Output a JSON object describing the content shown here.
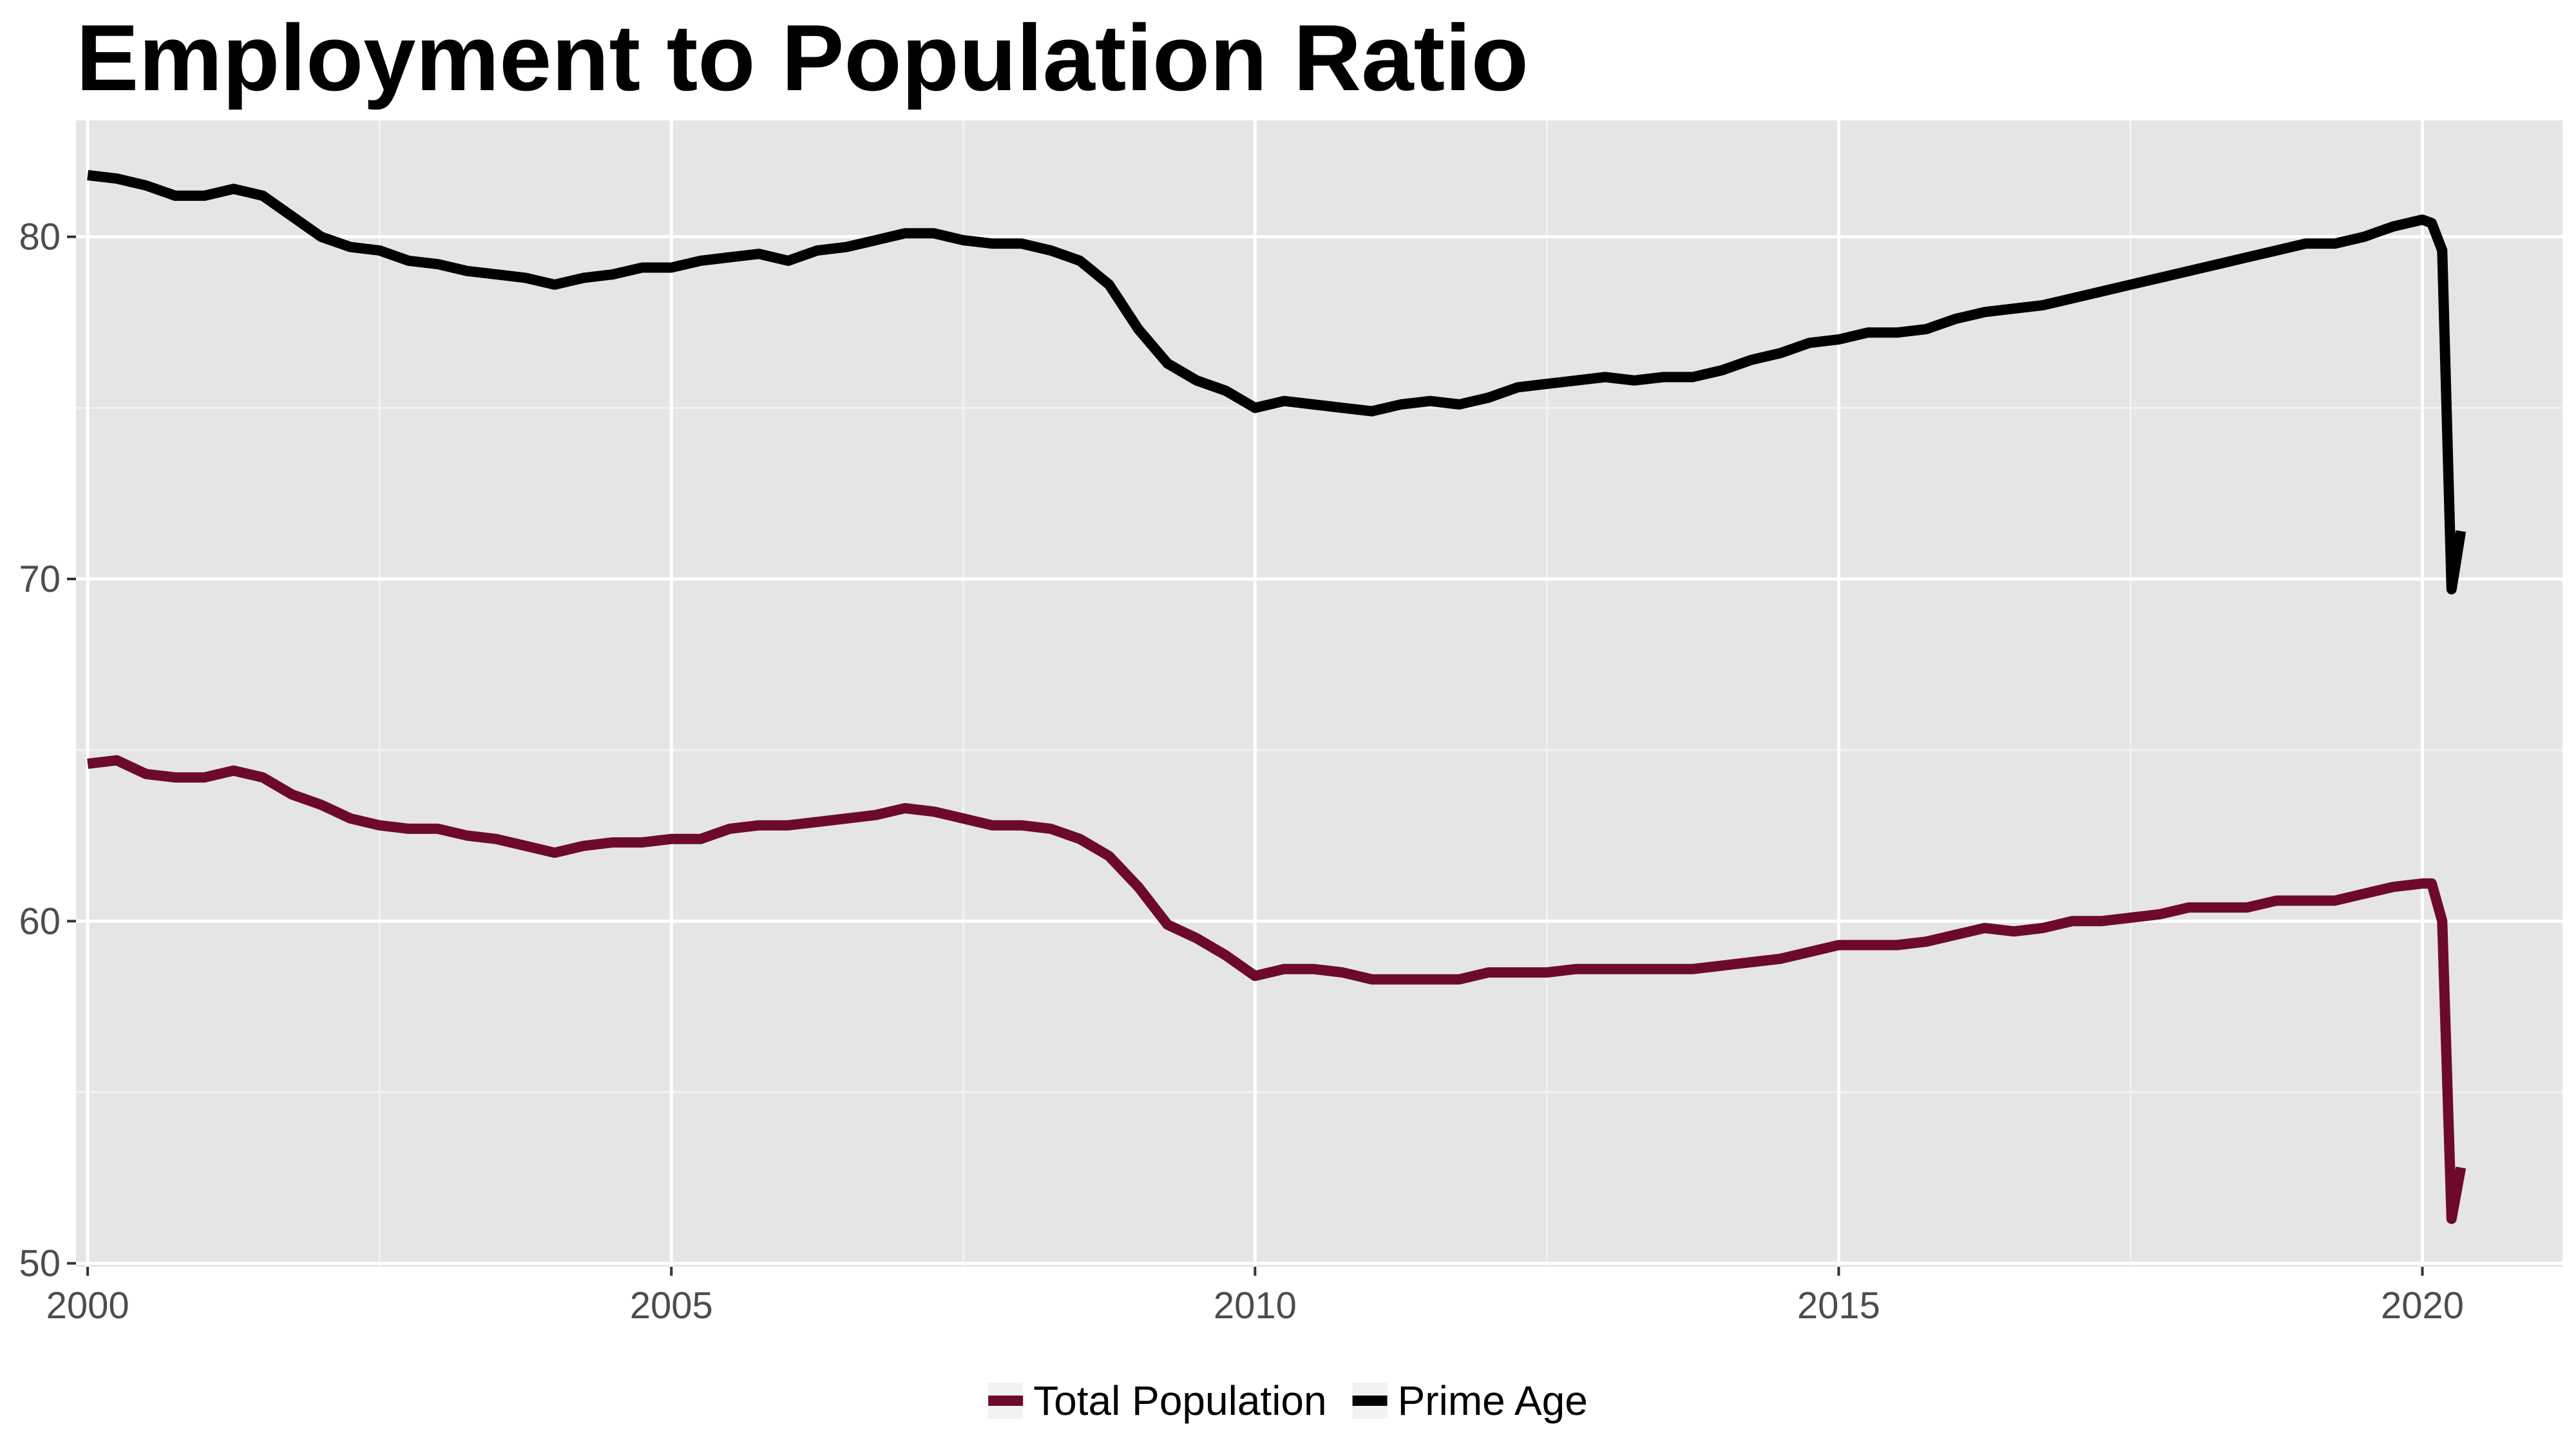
{
  "chart_data": {
    "type": "line",
    "title": "Employment to Population Ratio",
    "xlabel": "",
    "ylabel": "",
    "xlim": [
      1999.9,
      2021.2
    ],
    "ylim": [
      49.9,
      83.4
    ],
    "x_ticks": [
      2000,
      2005,
      2010,
      2015,
      2020
    ],
    "y_ticks": [
      50,
      60,
      70,
      80
    ],
    "grid": true,
    "legend_position": "bottom",
    "series": [
      {
        "name": "Total Population",
        "color": "#6d0a2a",
        "points": [
          [
            2000.0,
            64.6
          ],
          [
            2000.25,
            64.7
          ],
          [
            2000.5,
            64.3
          ],
          [
            2000.75,
            64.2
          ],
          [
            2001.0,
            64.2
          ],
          [
            2001.25,
            64.4
          ],
          [
            2001.5,
            64.2
          ],
          [
            2001.75,
            63.7
          ],
          [
            2002.0,
            63.4
          ],
          [
            2002.25,
            63.0
          ],
          [
            2002.5,
            62.8
          ],
          [
            2002.75,
            62.7
          ],
          [
            2003.0,
            62.7
          ],
          [
            2003.25,
            62.5
          ],
          [
            2003.5,
            62.4
          ],
          [
            2003.75,
            62.2
          ],
          [
            2004.0,
            62.0
          ],
          [
            2004.25,
            62.2
          ],
          [
            2004.5,
            62.3
          ],
          [
            2004.75,
            62.3
          ],
          [
            2005.0,
            62.4
          ],
          [
            2005.25,
            62.4
          ],
          [
            2005.5,
            62.7
          ],
          [
            2005.75,
            62.8
          ],
          [
            2006.0,
            62.8
          ],
          [
            2006.25,
            62.9
          ],
          [
            2006.5,
            63.0
          ],
          [
            2006.75,
            63.1
          ],
          [
            2007.0,
            63.3
          ],
          [
            2007.25,
            63.2
          ],
          [
            2007.5,
            63.0
          ],
          [
            2007.75,
            62.8
          ],
          [
            2008.0,
            62.8
          ],
          [
            2008.25,
            62.7
          ],
          [
            2008.5,
            62.4
          ],
          [
            2008.75,
            61.9
          ],
          [
            2009.0,
            61.0
          ],
          [
            2009.25,
            59.9
          ],
          [
            2009.5,
            59.5
          ],
          [
            2009.75,
            59.0
          ],
          [
            2010.0,
            58.4
          ],
          [
            2010.25,
            58.6
          ],
          [
            2010.5,
            58.6
          ],
          [
            2010.75,
            58.5
          ],
          [
            2011.0,
            58.3
          ],
          [
            2011.25,
            58.3
          ],
          [
            2011.5,
            58.3
          ],
          [
            2011.75,
            58.3
          ],
          [
            2012.0,
            58.5
          ],
          [
            2012.25,
            58.5
          ],
          [
            2012.5,
            58.5
          ],
          [
            2012.75,
            58.6
          ],
          [
            2013.0,
            58.6
          ],
          [
            2013.25,
            58.6
          ],
          [
            2013.5,
            58.6
          ],
          [
            2013.75,
            58.6
          ],
          [
            2014.0,
            58.7
          ],
          [
            2014.25,
            58.8
          ],
          [
            2014.5,
            58.9
          ],
          [
            2014.75,
            59.1
          ],
          [
            2015.0,
            59.3
          ],
          [
            2015.25,
            59.3
          ],
          [
            2015.5,
            59.3
          ],
          [
            2015.75,
            59.4
          ],
          [
            2016.0,
            59.6
          ],
          [
            2016.25,
            59.8
          ],
          [
            2016.5,
            59.7
          ],
          [
            2016.75,
            59.8
          ],
          [
            2017.0,
            60.0
          ],
          [
            2017.25,
            60.0
          ],
          [
            2017.5,
            60.1
          ],
          [
            2017.75,
            60.2
          ],
          [
            2018.0,
            60.4
          ],
          [
            2018.25,
            60.4
          ],
          [
            2018.5,
            60.4
          ],
          [
            2018.75,
            60.6
          ],
          [
            2019.0,
            60.6
          ],
          [
            2019.25,
            60.6
          ],
          [
            2019.5,
            60.8
          ],
          [
            2019.75,
            61.0
          ],
          [
            2020.0,
            61.1
          ],
          [
            2020.08,
            61.1
          ],
          [
            2020.17,
            60.0
          ],
          [
            2020.25,
            51.3
          ],
          [
            2020.33,
            52.8
          ]
        ]
      },
      {
        "name": "Prime Age",
        "color": "#000000",
        "points": [
          [
            2000.0,
            81.8
          ],
          [
            2000.25,
            81.7
          ],
          [
            2000.5,
            81.5
          ],
          [
            2000.75,
            81.2
          ],
          [
            2001.0,
            81.2
          ],
          [
            2001.25,
            81.4
          ],
          [
            2001.5,
            81.2
          ],
          [
            2001.75,
            80.6
          ],
          [
            2002.0,
            80.0
          ],
          [
            2002.25,
            79.7
          ],
          [
            2002.5,
            79.6
          ],
          [
            2002.75,
            79.3
          ],
          [
            2003.0,
            79.2
          ],
          [
            2003.25,
            79.0
          ],
          [
            2003.5,
            78.9
          ],
          [
            2003.75,
            78.8
          ],
          [
            2004.0,
            78.6
          ],
          [
            2004.25,
            78.8
          ],
          [
            2004.5,
            78.9
          ],
          [
            2004.75,
            79.1
          ],
          [
            2005.0,
            79.1
          ],
          [
            2005.25,
            79.3
          ],
          [
            2005.5,
            79.4
          ],
          [
            2005.75,
            79.5
          ],
          [
            2006.0,
            79.3
          ],
          [
            2006.25,
            79.6
          ],
          [
            2006.5,
            79.7
          ],
          [
            2006.75,
            79.9
          ],
          [
            2007.0,
            80.1
          ],
          [
            2007.25,
            80.1
          ],
          [
            2007.5,
            79.9
          ],
          [
            2007.75,
            79.8
          ],
          [
            2008.0,
            79.8
          ],
          [
            2008.25,
            79.6
          ],
          [
            2008.5,
            79.3
          ],
          [
            2008.75,
            78.6
          ],
          [
            2009.0,
            77.3
          ],
          [
            2009.25,
            76.3
          ],
          [
            2009.5,
            75.8
          ],
          [
            2009.75,
            75.5
          ],
          [
            2010.0,
            75.0
          ],
          [
            2010.25,
            75.2
          ],
          [
            2010.5,
            75.1
          ],
          [
            2010.75,
            75.0
          ],
          [
            2011.0,
            74.9
          ],
          [
            2011.25,
            75.1
          ],
          [
            2011.5,
            75.2
          ],
          [
            2011.75,
            75.1
          ],
          [
            2012.0,
            75.3
          ],
          [
            2012.25,
            75.6
          ],
          [
            2012.5,
            75.7
          ],
          [
            2012.75,
            75.8
          ],
          [
            2013.0,
            75.9
          ],
          [
            2013.25,
            75.8
          ],
          [
            2013.5,
            75.9
          ],
          [
            2013.75,
            75.9
          ],
          [
            2014.0,
            76.1
          ],
          [
            2014.25,
            76.4
          ],
          [
            2014.5,
            76.6
          ],
          [
            2014.75,
            76.9
          ],
          [
            2015.0,
            77.0
          ],
          [
            2015.25,
            77.2
          ],
          [
            2015.5,
            77.2
          ],
          [
            2015.75,
            77.3
          ],
          [
            2016.0,
            77.6
          ],
          [
            2016.25,
            77.8
          ],
          [
            2016.5,
            77.9
          ],
          [
            2016.75,
            78.0
          ],
          [
            2017.0,
            78.2
          ],
          [
            2017.25,
            78.4
          ],
          [
            2017.5,
            78.6
          ],
          [
            2017.75,
            78.8
          ],
          [
            2018.0,
            79.0
          ],
          [
            2018.25,
            79.2
          ],
          [
            2018.5,
            79.4
          ],
          [
            2018.75,
            79.6
          ],
          [
            2019.0,
            79.8
          ],
          [
            2019.25,
            79.8
          ],
          [
            2019.5,
            80.0
          ],
          [
            2019.75,
            80.3
          ],
          [
            2020.0,
            80.5
          ],
          [
            2020.08,
            80.4
          ],
          [
            2020.17,
            79.6
          ],
          [
            2020.25,
            69.7
          ],
          [
            2020.33,
            71.4
          ]
        ]
      }
    ]
  }
}
